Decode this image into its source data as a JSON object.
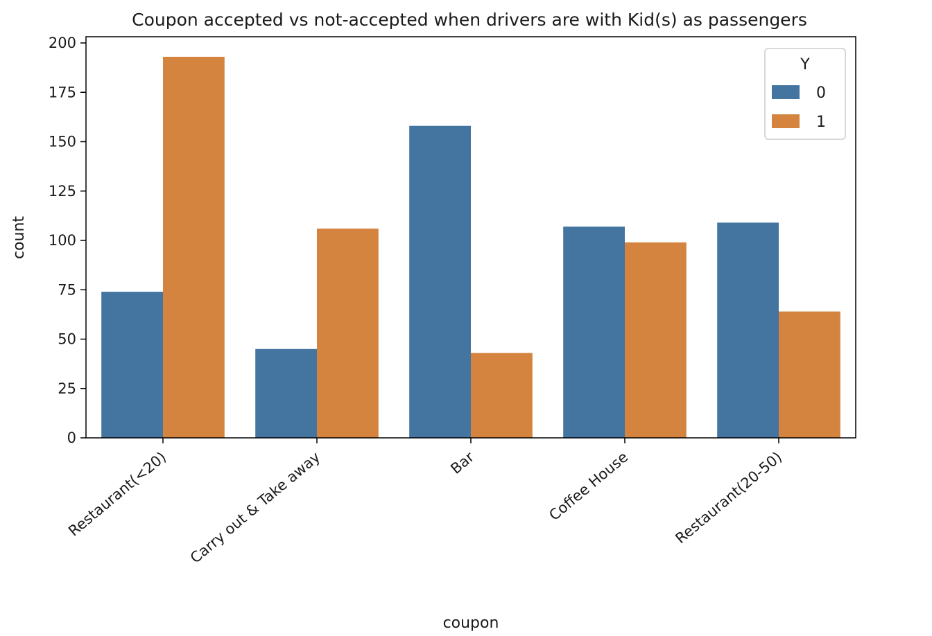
{
  "chart_data": {
    "type": "bar",
    "title": "Coupon accepted vs not-accepted when drivers are with Kid(s) as passengers",
    "xlabel": "coupon",
    "ylabel": "count",
    "categories": [
      "Restaurant(<20)",
      "Carry out & Take away",
      "Bar",
      "Coffee House",
      "Restaurant(20-50)"
    ],
    "series": [
      {
        "name": "0",
        "color": "#4475a0",
        "values": [
          74,
          45,
          158,
          107,
          109
        ]
      },
      {
        "name": "1",
        "color": "#d4843e",
        "values": [
          193,
          106,
          43,
          99,
          64
        ]
      }
    ],
    "ylim": [
      0,
      200
    ],
    "yticks": [
      0,
      25,
      50,
      75,
      100,
      125,
      150,
      175,
      200
    ],
    "legend": {
      "title": "Y",
      "position": "top-right"
    },
    "grid": false
  }
}
